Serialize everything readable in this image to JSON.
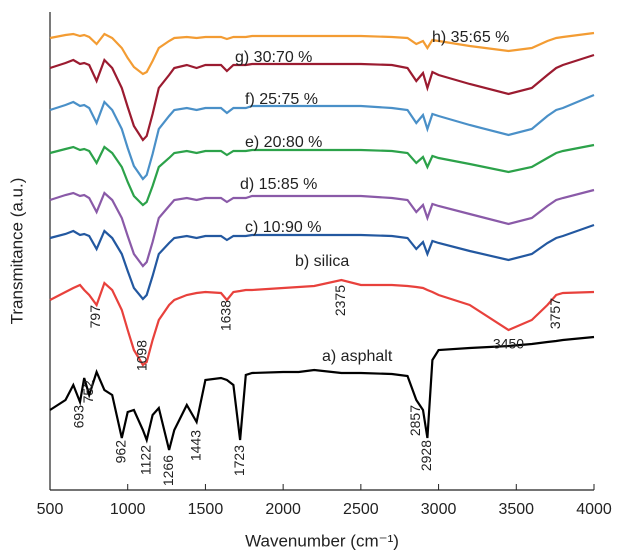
{
  "chart_data": {
    "type": "line",
    "xlabel": "Wavenumber (cm⁻¹)",
    "ylabel": "Transmitance (a.u.)",
    "xlim": [
      500,
      4000
    ],
    "xticks": [
      500,
      1000,
      1500,
      2000,
      2500,
      3000,
      3500,
      4000
    ],
    "ylim": [
      0,
      478
    ],
    "x": [
      500,
      600,
      650,
      693,
      720,
      752,
      800,
      850,
      900,
      962,
      1000,
      1040,
      1098,
      1122,
      1160,
      1200,
      1266,
      1300,
      1380,
      1443,
      1500,
      1600,
      1638,
      1680,
      1723,
      1760,
      1800,
      2000,
      2100,
      2200,
      2375,
      2500,
      2700,
      2800,
      2857,
      2900,
      2928,
      2960,
      3000,
      3200,
      3450,
      3600,
      3700,
      3757,
      3800,
      4000
    ],
    "series": [
      {
        "name": "h) 35:65 %",
        "color": "#f39c33",
        "values": [
          452,
          455,
          456,
          454,
          455,
          453,
          446,
          456,
          452,
          442,
          432,
          423,
          416,
          418,
          429,
          442,
          449,
          452,
          453,
          452,
          453,
          453,
          451,
          453,
          453,
          453,
          454,
          454,
          454,
          454,
          454,
          454,
          453,
          452,
          446,
          449,
          442,
          450,
          449,
          444,
          439,
          442,
          449,
          452,
          453,
          457
        ]
      },
      {
        "name": "g) 30:70 %",
        "color": "#9b1b30",
        "values": [
          422,
          427,
          430,
          426,
          427,
          425,
          409,
          430,
          422,
          402,
          383,
          364,
          350,
          354,
          376,
          402,
          415,
          422,
          425,
          422,
          425,
          425,
          419,
          425,
          425,
          425,
          426,
          426,
          426,
          426,
          426,
          426,
          425,
          422,
          409,
          417,
          402,
          418,
          415,
          406,
          396,
          402,
          415,
          422,
          425,
          435
        ]
      },
      {
        "name": "f) 25:75 %",
        "color": "#4a90c8",
        "values": [
          380,
          385,
          388,
          384,
          385,
          382,
          367,
          388,
          380,
          361,
          342,
          324,
          311,
          315,
          336,
          361,
          374,
          380,
          382,
          380,
          382,
          382,
          377,
          382,
          382,
          382,
          384,
          384,
          384,
          384,
          384,
          384,
          382,
          380,
          367,
          375,
          361,
          376,
          374,
          365,
          355,
          361,
          374,
          380,
          382,
          395
        ]
      },
      {
        "name": "e) 20:80 %",
        "color": "#2ca24a",
        "values": [
          337,
          341,
          343,
          340,
          341,
          339,
          327,
          343,
          337,
          323,
          308,
          294,
          285,
          288,
          304,
          323,
          332,
          337,
          339,
          337,
          339,
          339,
          335,
          339,
          339,
          339,
          340,
          340,
          340,
          340,
          340,
          340,
          339,
          337,
          327,
          333,
          323,
          334,
          332,
          326,
          318,
          323,
          332,
          337,
          339,
          345
        ]
      },
      {
        "name": "d) 15:85 %",
        "color": "#8a5aa8",
        "values": [
          290,
          295,
          297,
          294,
          295,
          292,
          278,
          297,
          290,
          272,
          254,
          236,
          224,
          228,
          248,
          272,
          284,
          290,
          292,
          290,
          292,
          292,
          288,
          292,
          292,
          292,
          294,
          294,
          294,
          294,
          294,
          294,
          292,
          290,
          278,
          285,
          272,
          286,
          284,
          276,
          266,
          272,
          284,
          290,
          292,
          300
        ]
      },
      {
        "name": "c) 10:90 %",
        "color": "#2358a0",
        "values": [
          252,
          256,
          259,
          255,
          256,
          254,
          241,
          259,
          252,
          236,
          219,
          202,
          191,
          195,
          214,
          236,
          247,
          252,
          254,
          252,
          254,
          254,
          250,
          254,
          254,
          254,
          255,
          255,
          255,
          255,
          255,
          255,
          254,
          252,
          241,
          248,
          236,
          249,
          247,
          239,
          230,
          236,
          247,
          252,
          254,
          265
        ]
      },
      {
        "name": "b) silica",
        "color": "#e8413c",
        "values": [
          190,
          198,
          202,
          205,
          200,
          195,
          185,
          207,
          200,
          180,
          160,
          140,
          125,
          128,
          150,
          170,
          185,
          190,
          195,
          197,
          198,
          197,
          190,
          198,
          199,
          200,
          200,
          202,
          203,
          204,
          210,
          205,
          205,
          204,
          203,
          202,
          200,
          198,
          195,
          185,
          160,
          170,
          185,
          195,
          197,
          198
        ]
      },
      {
        "name": "a) asphalt",
        "color": "#000000",
        "values": [
          80,
          90,
          105,
          88,
          112,
          95,
          118,
          100,
          95,
          52,
          78,
          80,
          60,
          50,
          75,
          82,
          40,
          60,
          85,
          68,
          110,
          112,
          110,
          105,
          50,
          115,
          117,
          118,
          118,
          120,
          117,
          117,
          116,
          114,
          90,
          80,
          52,
          130,
          140,
          142,
          144,
          146,
          148,
          149,
          150,
          153
        ]
      }
    ],
    "annotations": [
      {
        "text": "797",
        "x": 797
      },
      {
        "text": "1638",
        "x": 1638
      },
      {
        "text": "2375",
        "x": 2375
      },
      {
        "text": "3757",
        "x": 3757
      },
      {
        "text": "1098",
        "x": 1098
      },
      {
        "text": "3450",
        "x": 3450
      },
      {
        "text": "693",
        "x": 693
      },
      {
        "text": "752",
        "x": 752
      },
      {
        "text": "962",
        "x": 962
      },
      {
        "text": "1122",
        "x": 1122
      },
      {
        "text": "1266",
        "x": 1266
      },
      {
        "text": "1443",
        "x": 1443
      },
      {
        "text": "1723",
        "x": 1723
      },
      {
        "text": "2857",
        "x": 2857
      },
      {
        "text": "2928",
        "x": 2928
      }
    ]
  }
}
